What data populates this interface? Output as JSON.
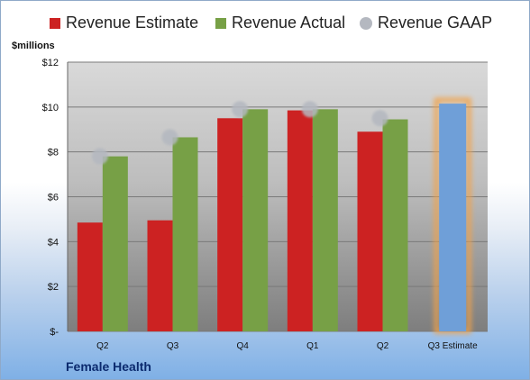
{
  "chart_data": {
    "type": "bar",
    "unit_label": "$millions",
    "company": "Female Health",
    "categories": [
      "Q2",
      "Q3",
      "Q4",
      "Q1",
      "Q2",
      "Q3 Estimate"
    ],
    "series": [
      {
        "name": "Revenue Estimate",
        "color": "#cc2222",
        "values": [
          4.85,
          4.95,
          9.5,
          9.85,
          8.9,
          null
        ]
      },
      {
        "name": "Revenue Actual",
        "color": "#77a046",
        "values": [
          7.8,
          8.65,
          9.9,
          9.9,
          9.45,
          null
        ]
      },
      {
        "name": "Revenue GAAP",
        "color": "#b4b8c0",
        "marker": "circle",
        "values": [
          7.8,
          8.65,
          9.9,
          9.9,
          9.5,
          null
        ]
      }
    ],
    "estimate_bar": {
      "category": "Q3 Estimate",
      "value": 10.15,
      "color": "#6f9fd8",
      "glow": "#f2a34a"
    },
    "yticks": [
      "$-",
      "$2",
      "$4",
      "$6",
      "$8",
      "$10",
      "$12"
    ],
    "ylim": [
      0,
      12
    ],
    "grid": true,
    "legend_position": "top"
  }
}
